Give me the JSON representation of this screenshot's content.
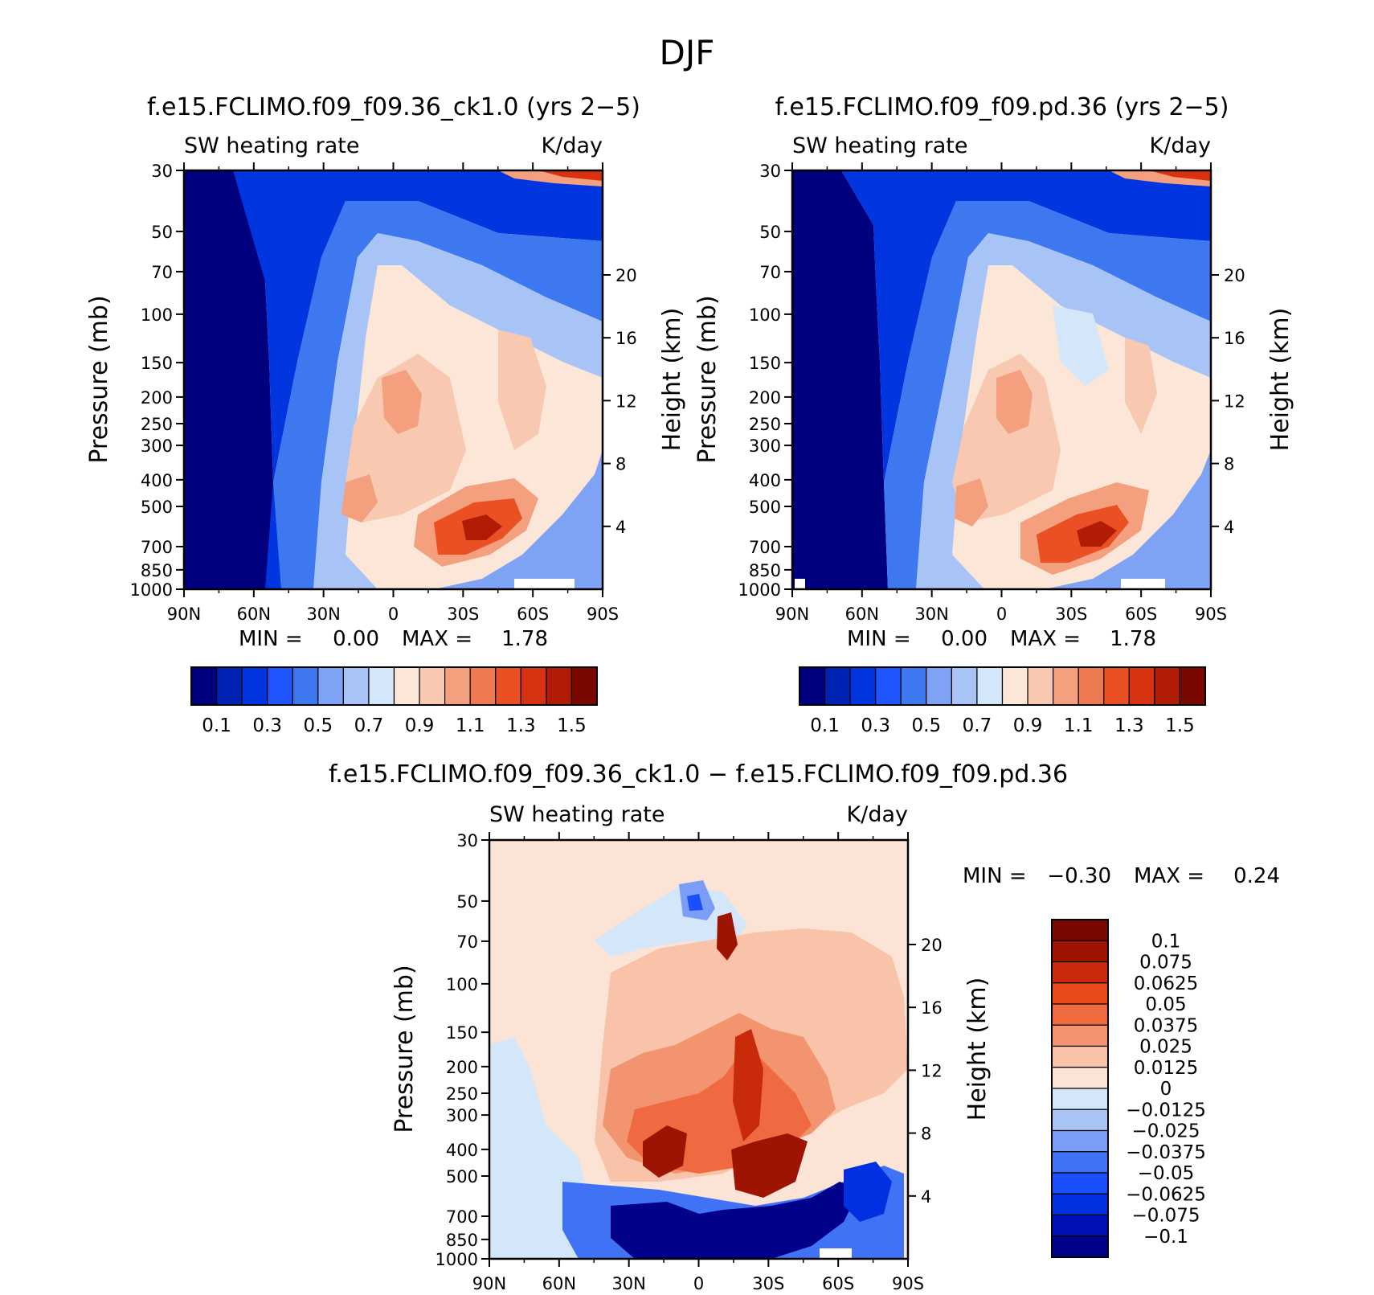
{
  "figure_title": "DJF",
  "palettes": {
    "field": [
      "#00007f",
      "#0022b3",
      "#0035e0",
      "#1f56ff",
      "#3e78f0",
      "#7ea3f5",
      "#a8c4f7",
      "#d4e6fa",
      "#fbe6d8",
      "#f8c8b0",
      "#f4a07e",
      "#ee7a52",
      "#eb4f24",
      "#d93210",
      "#b01c06",
      "#7a0800"
    ],
    "diff": [
      "#000088",
      "#0011b8",
      "#0030e0",
      "#1a4fff",
      "#3f72f5",
      "#7a9ef7",
      "#a9c5f5",
      "#d4e6f9",
      "#fbe4d6",
      "#f8c3a8",
      "#f29470",
      "#ef6a40",
      "#e94a1c",
      "#c92a0a",
      "#9e1403",
      "#7a0800"
    ]
  },
  "panels": [
    {
      "id": "ck1",
      "title": "f.e15.FCLIMO.f09_f09.36_ck1.0 (yrs 2−5)",
      "left_string": "SW heating rate",
      "right_string": "K/day",
      "ylabel": "Pressure (mb)",
      "ylabel_right": "Height (km)",
      "stats": {
        "min_label": "MIN =",
        "min_value": "0.00",
        "max_label": "MAX =",
        "max_value": "1.78"
      }
    },
    {
      "id": "pd",
      "title": "f.e15.FCLIMO.f09_f09.pd.36 (yrs 2−5)",
      "left_string": "SW heating rate",
      "right_string": "K/day",
      "ylabel": "Pressure (mb)",
      "ylabel_right": "Height (km)",
      "stats": {
        "min_label": "MIN =",
        "min_value": "0.00",
        "max_label": "MAX =",
        "max_value": "1.78"
      }
    },
    {
      "id": "diff",
      "title": "f.e15.FCLIMO.f09_f09.36_ck1.0 − f.e15.FCLIMO.f09_f09.pd.36",
      "left_string": "SW heating rate",
      "right_string": "K/day",
      "ylabel": "Pressure (mb)",
      "ylabel_right": "Height (km)",
      "stats": {
        "min_label": "MIN =",
        "min_value": "−0.30",
        "max_label": "MAX =",
        "max_value": "0.24"
      }
    }
  ],
  "colorbar_main": {
    "labels": [
      "0.1",
      "0.3",
      "0.5",
      "0.7",
      "0.9",
      "1.1",
      "1.3",
      "1.5"
    ]
  },
  "colorbar_diff": {
    "labels": [
      "0.1",
      "0.075",
      "0.0625",
      "0.05",
      "0.0375",
      "0.025",
      "0.0125",
      "0",
      "−0.0125",
      "−0.025",
      "−0.0375",
      "−0.05",
      "−0.0625",
      "−0.075",
      "−0.1"
    ]
  },
  "chart_data": [
    {
      "type": "heatmap",
      "title": "f.e15.FCLIMO.f09_f09.36_ck1.0 (yrs 2−5)",
      "subtitle_left": "SW heating rate",
      "units": "K/day",
      "xlabel": "",
      "ylabel": "Pressure (mb)",
      "ylabel_right": "Height (km)",
      "x_ticks": [
        "90N",
        "60N",
        "30N",
        "0",
        "30S",
        "60S",
        "90S"
      ],
      "x_values": [
        90,
        60,
        30,
        0,
        -30,
        -60,
        -90
      ],
      "y_ticks": [
        "30",
        "50",
        "70",
        "100",
        "150",
        "200",
        "250",
        "300",
        "400",
        "500",
        "700",
        "850",
        "1000"
      ],
      "y_values": [
        30,
        50,
        70,
        100,
        150,
        200,
        250,
        300,
        400,
        500,
        700,
        850,
        1000
      ],
      "ylim": [
        1000,
        30
      ],
      "y_scale": "log",
      "right_ticks": [
        "20",
        "16",
        "12",
        "8",
        "4"
      ],
      "right_values": [
        20,
        16,
        12,
        8,
        4
      ],
      "colorbar_levels": [
        0.1,
        0.2,
        0.3,
        0.4,
        0.5,
        0.6,
        0.7,
        0.8,
        0.9,
        1.0,
        1.1,
        1.2,
        1.3,
        1.4,
        1.5
      ],
      "colorbar_labels": [
        "0.1",
        "0.3",
        "0.5",
        "0.7",
        "0.9",
        "1.1",
        "1.3",
        "1.5"
      ],
      "min": 0.0,
      "max": 1.78,
      "features": [
        {
          "lat": 90,
          "p_top": 30,
          "p_bottom": 1000,
          "level": 0.05
        },
        {
          "lat": 25,
          "p": 820,
          "level": 1.0
        },
        {
          "lat": 5,
          "p": 450,
          "level": 1.05
        },
        {
          "lat": -20,
          "p": 750,
          "level": 0.95
        },
        {
          "lat": -35,
          "p": 860,
          "level": 1.6
        },
        {
          "lat": -60,
          "p": 500,
          "level": 1.05
        },
        {
          "lat": -80,
          "p": 35,
          "level": 1.7
        },
        {
          "lat": -70,
          "p": 850,
          "level": 0.4
        }
      ]
    },
    {
      "type": "heatmap",
      "title": "f.e15.FCLIMO.f09_f09.pd.36 (yrs 2−5)",
      "subtitle_left": "SW heating rate",
      "units": "K/day",
      "xlabel": "",
      "ylabel": "Pressure (mb)",
      "ylabel_right": "Height (km)",
      "x_ticks": [
        "90N",
        "60N",
        "30N",
        "0",
        "30S",
        "60S",
        "90S"
      ],
      "x_values": [
        90,
        60,
        30,
        0,
        -30,
        -60,
        -90
      ],
      "y_ticks": [
        "30",
        "50",
        "70",
        "100",
        "150",
        "200",
        "250",
        "300",
        "400",
        "500",
        "700",
        "850",
        "1000"
      ],
      "y_values": [
        30,
        50,
        70,
        100,
        150,
        200,
        250,
        300,
        400,
        500,
        700,
        850,
        1000
      ],
      "ylim": [
        1000,
        30
      ],
      "y_scale": "log",
      "right_ticks": [
        "20",
        "16",
        "12",
        "8",
        "4"
      ],
      "right_values": [
        20,
        16,
        12,
        8,
        4
      ],
      "colorbar_levels": [
        0.1,
        0.2,
        0.3,
        0.4,
        0.5,
        0.6,
        0.7,
        0.8,
        0.9,
        1.0,
        1.1,
        1.2,
        1.3,
        1.4,
        1.5
      ],
      "colorbar_labels": [
        "0.1",
        "0.3",
        "0.5",
        "0.7",
        "0.9",
        "1.1",
        "1.3",
        "1.5"
      ],
      "min": 0.0,
      "max": 1.78,
      "features": [
        {
          "lat": 90,
          "p_top": 30,
          "p_bottom": 1000,
          "level": 0.05
        },
        {
          "lat": 25,
          "p": 830,
          "level": 1.0
        },
        {
          "lat": 0,
          "p": 480,
          "level": 1.0
        },
        {
          "lat": -35,
          "p": 870,
          "level": 1.6
        },
        {
          "lat": -80,
          "p": 35,
          "level": 1.7
        },
        {
          "lat": -80,
          "p": 850,
          "level": 0.4
        }
      ]
    },
    {
      "type": "heatmap",
      "title": "f.e15.FCLIMO.f09_f09.36_ck1.0 − f.e15.FCLIMO.f09_f09.pd.36",
      "subtitle_left": "SW heating rate",
      "units": "K/day",
      "xlabel": "",
      "ylabel": "Pressure (mb)",
      "ylabel_right": "Height (km)",
      "x_ticks": [
        "90N",
        "60N",
        "30N",
        "0",
        "30S",
        "60S",
        "90S"
      ],
      "x_values": [
        90,
        60,
        30,
        0,
        -30,
        -60,
        -90
      ],
      "y_ticks": [
        "30",
        "50",
        "70",
        "100",
        "150",
        "200",
        "250",
        "300",
        "400",
        "500",
        "700",
        "850",
        "1000"
      ],
      "y_values": [
        30,
        50,
        70,
        100,
        150,
        200,
        250,
        300,
        400,
        500,
        700,
        850,
        1000
      ],
      "ylim": [
        1000,
        30
      ],
      "y_scale": "log",
      "right_ticks": [
        "20",
        "16",
        "12",
        "8",
        "4"
      ],
      "right_values": [
        20,
        16,
        12,
        8,
        4
      ],
      "colorbar_levels": [
        -0.1,
        -0.075,
        -0.0625,
        -0.05,
        -0.0375,
        -0.025,
        -0.0125,
        0,
        0.0125,
        0.025,
        0.0375,
        0.05,
        0.0625,
        0.075,
        0.1
      ],
      "colorbar_labels": [
        "0.1",
        "0.075",
        "0.0625",
        "0.05",
        "0.0375",
        "0.025",
        "0.0125",
        "0",
        "−0.0125",
        "−0.025",
        "−0.0375",
        "−0.05",
        "−0.0625",
        "−0.075",
        "−0.1"
      ],
      "min": -0.3,
      "max": 0.24,
      "features": [
        {
          "lat": 15,
          "p": 760,
          "level": 0.1
        },
        {
          "lat": -12,
          "p": 280,
          "level": 0.1
        },
        {
          "lat": -18,
          "p": 560,
          "level": 0.1
        },
        {
          "lat": -30,
          "p": 760,
          "level": 0.1
        },
        {
          "lat": 15,
          "p": 920,
          "level": -0.1
        },
        {
          "lat": -30,
          "p": 930,
          "level": -0.1
        },
        {
          "lat": 0,
          "p": 190,
          "level": -0.05
        },
        {
          "lat": 90,
          "p": 600,
          "level": 0.0125
        }
      ]
    }
  ]
}
